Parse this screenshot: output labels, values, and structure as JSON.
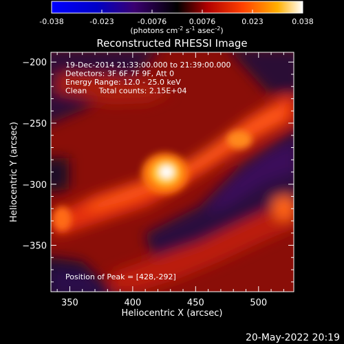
{
  "chart_data": {
    "type": "heatmap",
    "title": "Reconstructed RHESSI Image",
    "xlabel": "Heliocentric X (arcsec)",
    "ylabel": "Heliocentric Y (arcsec)",
    "xlim": [
      335,
      528
    ],
    "ylim": [
      -388,
      -192
    ],
    "x_ticks": [
      350,
      400,
      450,
      500
    ],
    "y_ticks": [
      -200,
      -250,
      -300,
      -350
    ],
    "colorbar": {
      "ticks": [
        "-0.038",
        "-0.023",
        "-0.0076",
        "0.0076",
        "0.023",
        "0.038"
      ],
      "range": [
        -0.038,
        0.038
      ],
      "unit_prefix": "(photons cm",
      "unit_exp1": "-2",
      "unit_mid": " s",
      "unit_exp2": "-1",
      "unit_mid2": " asec",
      "unit_exp3": "-2",
      "unit_suffix": ")"
    },
    "annotations": [
      "19-Dec-2014 21:33:00.000 to 21:39:00.000",
      "Detectors: 3F 6F 7F 9F, Att 0",
      "Energy Range: 12.0 - 25.0 keV",
      "Clean     Total counts: 2.15E+04"
    ],
    "peak_text": "Position of Peak = [428,-292]",
    "peak": [
      428,
      -292
    ],
    "grid": false
  },
  "timestamp": "20-May-2022 20:19"
}
